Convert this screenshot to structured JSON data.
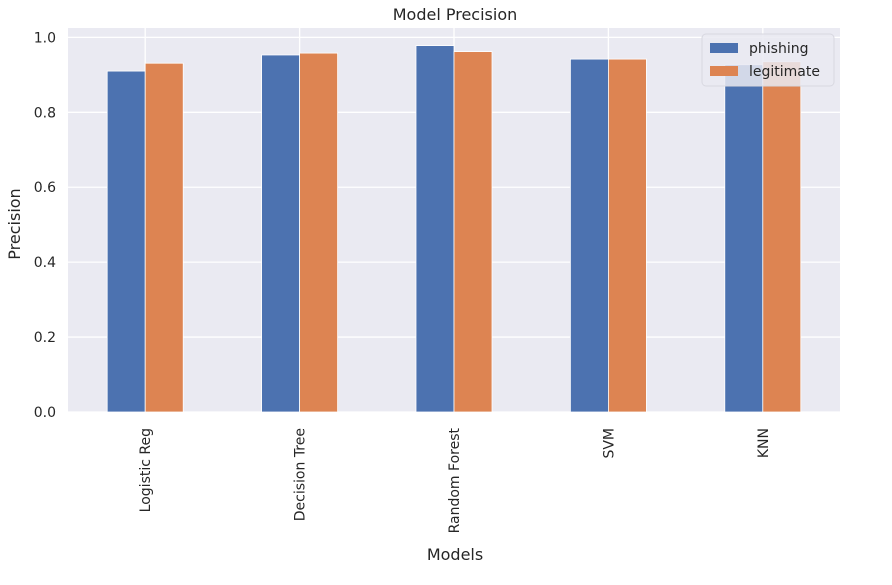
{
  "chart_data": {
    "type": "bar",
    "title": "Model Precision",
    "xlabel": "Models",
    "ylabel": "Precision",
    "categories": [
      "Logistic Reg",
      "Decision Tree",
      "Random Forest",
      "SVM",
      "KNN"
    ],
    "series": [
      {
        "name": "phishing",
        "color": "#4c72b0",
        "values": [
          0.91,
          0.953,
          0.978,
          0.942,
          0.927
        ]
      },
      {
        "name": "legitimate",
        "color": "#dd8452",
        "values": [
          0.931,
          0.958,
          0.962,
          0.942,
          0.935
        ]
      }
    ],
    "ylim": [
      0,
      1.025
    ],
    "yticks": [
      0.0,
      0.2,
      0.4,
      0.6,
      0.8,
      1.0
    ],
    "ytick_labels": [
      "0.0",
      "0.2",
      "0.4",
      "0.6",
      "0.8",
      "1.0"
    ],
    "grid": true,
    "legend_position": "top-right",
    "background_color": "#eaeaf2"
  }
}
